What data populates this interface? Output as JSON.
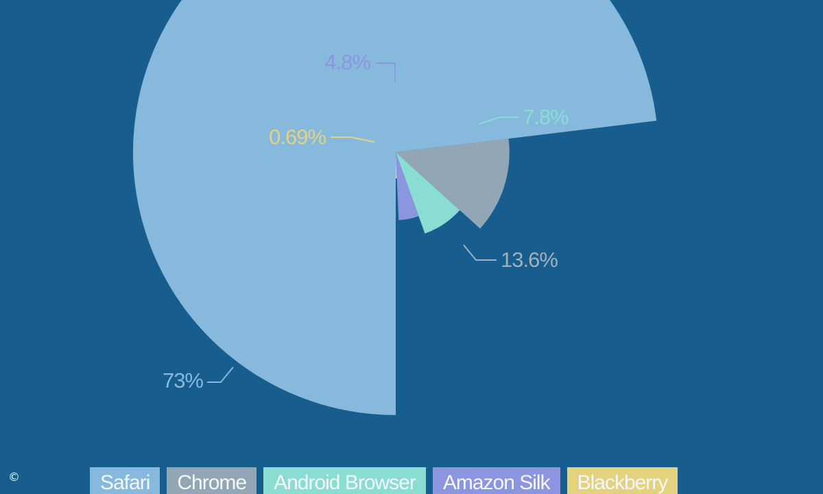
{
  "chart_data": {
    "type": "pie",
    "variant": "nightingale-rose",
    "title": "",
    "slices": [
      {
        "name": "Safari",
        "value": 73,
        "label": "73%",
        "color": "#86b9dc",
        "text_color": "#86b9dc"
      },
      {
        "name": "Chrome",
        "value": 13.6,
        "label": "13.6%",
        "color": "#93a6b5",
        "text_color": "#9fb1c0"
      },
      {
        "name": "Android Browser",
        "value": 7.8,
        "label": "7.8%",
        "color": "#89ddd3",
        "text_color": "#89ddd3"
      },
      {
        "name": "Amazon Silk",
        "value": 4.8,
        "label": "4.8%",
        "color": "#8c95df",
        "text_color": "#8c95df"
      },
      {
        "name": "Blackberry",
        "value": 0.69,
        "label": "0.69%",
        "color": "#e3d37e",
        "text_color": "#e3d37e"
      }
    ],
    "legend_position": "bottom"
  },
  "credit": {
    "symbol": "©"
  }
}
